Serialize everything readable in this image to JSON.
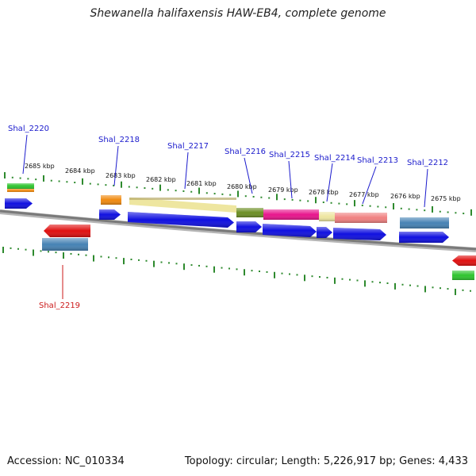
{
  "title": "Shewanella halifaxensis HAW-EB4, complete genome",
  "footer": {
    "accession": "Accession: NC_010334",
    "summary": "Topology: circular; Length: 5,226,917 bp; Genes: 4,433"
  },
  "colors": {
    "backbone": "#8a8a8a",
    "ruler_tick": "#2e8a2e",
    "cds_blue": "#1010e0",
    "cds_red": "#e01010",
    "label_blue": "#1a1acc",
    "label_red": "#cc1a1a",
    "green_feature": "#2ec42e",
    "orange_feature": "#f08a10",
    "khaki_feature": "#eee6a0",
    "olive_feature": "#6b8e23",
    "magenta_feature": "#e8158c",
    "salmon_feature": "#f08080",
    "steelblue_feature": "#4682b4"
  },
  "ruler_labels": [
    "2685 kbp",
    "2684 kbp",
    "2683 kbp",
    "2682 kbp",
    "2681 kbp",
    "2680 kbp",
    "2679 kbp",
    "2678 kbp",
    "2677 kbp",
    "2676 kbp",
    "2675 kbp"
  ],
  "gene_labels": [
    "Shal_2220",
    "Shal_2218",
    "Shal_2217",
    "Shal_2216",
    "Shal_2215",
    "Shal_2214",
    "Shal_2213",
    "Shal_2212",
    "Shal_2219"
  ]
}
